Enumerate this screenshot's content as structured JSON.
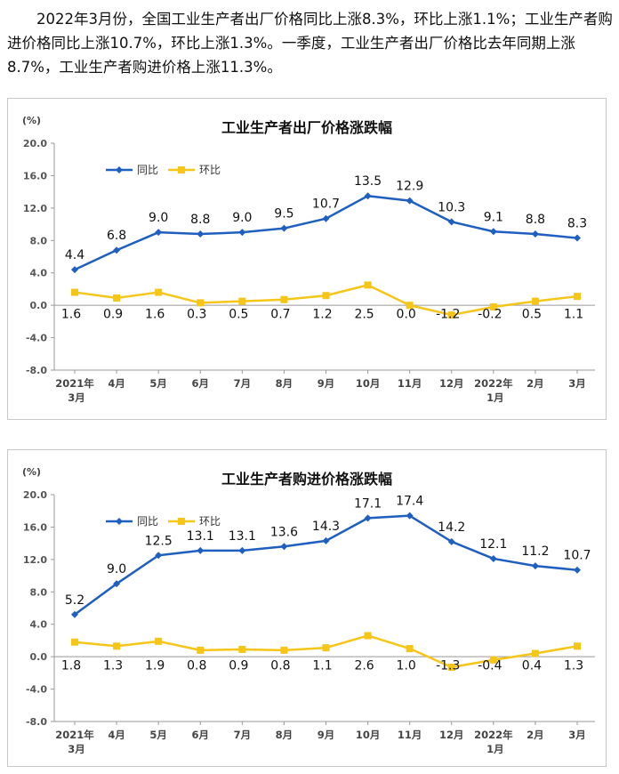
{
  "intro_text": "2022年3月份，全国工业生产者出厂价格同比上涨8.3%，环比上涨1.1%；工业生产者购进价格同比上涨10.7%，环比上涨1.3%。一季度，工业生产者出厂价格比去年同期上涨8.7%，工业生产者购进价格上涨11.3%。",
  "colors": {
    "yoy": "#1f5fbf",
    "mom": "#f5c518",
    "axis": "#999999"
  },
  "chart_data": [
    {
      "type": "line",
      "title": "工业生产者出厂价格涨跌幅",
      "unit": "(%)",
      "categories": [
        [
          "2021年",
          "3月"
        ],
        [
          "4月"
        ],
        [
          "5月"
        ],
        [
          "6月"
        ],
        [
          "7月"
        ],
        [
          "8月"
        ],
        [
          "9月"
        ],
        [
          "10月"
        ],
        [
          "11月"
        ],
        [
          "12月"
        ],
        [
          "2022年",
          "1月"
        ],
        [
          "2月"
        ],
        [
          "3月"
        ]
      ],
      "yticks": [
        "20.0",
        "16.0",
        "12.0",
        "8.0",
        "4.0",
        "0.0",
        "-4.0",
        "-8.0"
      ],
      "ylim": [
        -8,
        20
      ],
      "legend_position": "top-left",
      "series": [
        {
          "name": "同比",
          "key": "yoy",
          "values": [
            4.4,
            6.8,
            9.0,
            8.8,
            9.0,
            9.5,
            10.7,
            13.5,
            12.9,
            10.3,
            9.1,
            8.8,
            8.3
          ],
          "labels": [
            "4.4",
            "6.8",
            "9.0",
            "8.8",
            "9.0",
            "9.5",
            "10.7",
            "13.5",
            "12.9",
            "10.3",
            "9.1",
            "8.8",
            "8.3"
          ]
        },
        {
          "name": "环比",
          "key": "mom",
          "values": [
            1.6,
            0.9,
            1.6,
            0.3,
            0.5,
            0.7,
            1.2,
            2.5,
            0.0,
            -1.2,
            -0.2,
            0.5,
            1.1
          ],
          "labels": [
            "1.6",
            "0.9",
            "1.6",
            "0.3",
            "0.5",
            "0.7",
            "1.2",
            "2.5",
            "0.0",
            "-1.2",
            "-0.2",
            "0.5",
            "1.1"
          ]
        }
      ]
    },
    {
      "type": "line",
      "title": "工业生产者购进价格涨跌幅",
      "unit": "(%)",
      "categories": [
        [
          "2021年",
          "3月"
        ],
        [
          "4月"
        ],
        [
          "5月"
        ],
        [
          "6月"
        ],
        [
          "7月"
        ],
        [
          "8月"
        ],
        [
          "9月"
        ],
        [
          "10月"
        ],
        [
          "11月"
        ],
        [
          "12月"
        ],
        [
          "2022年",
          "1月"
        ],
        [
          "2月"
        ],
        [
          "3月"
        ]
      ],
      "yticks": [
        "20.0",
        "16.0",
        "12.0",
        "8.0",
        "4.0",
        "0.0",
        "-4.0",
        "-8.0"
      ],
      "ylim": [
        -8,
        20
      ],
      "legend_position": "top-left",
      "series": [
        {
          "name": "同比",
          "key": "yoy",
          "values": [
            5.2,
            9.0,
            12.5,
            13.1,
            13.1,
            13.6,
            14.3,
            17.1,
            17.4,
            14.2,
            12.1,
            11.2,
            10.7
          ],
          "labels": [
            "5.2",
            "9.0",
            "12.5",
            "13.1",
            "13.1",
            "13.6",
            "14.3",
            "17.1",
            "17.4",
            "14.2",
            "12.1",
            "11.2",
            "10.7"
          ]
        },
        {
          "name": "环比",
          "key": "mom",
          "values": [
            1.8,
            1.3,
            1.9,
            0.8,
            0.9,
            0.8,
            1.1,
            2.6,
            1.0,
            -1.3,
            -0.4,
            0.4,
            1.3
          ],
          "labels": [
            "1.8",
            "1.3",
            "1.9",
            "0.8",
            "0.9",
            "0.8",
            "1.1",
            "2.6",
            "1.0",
            "-1.3",
            "-0.4",
            "0.4",
            "1.3"
          ]
        }
      ]
    }
  ]
}
